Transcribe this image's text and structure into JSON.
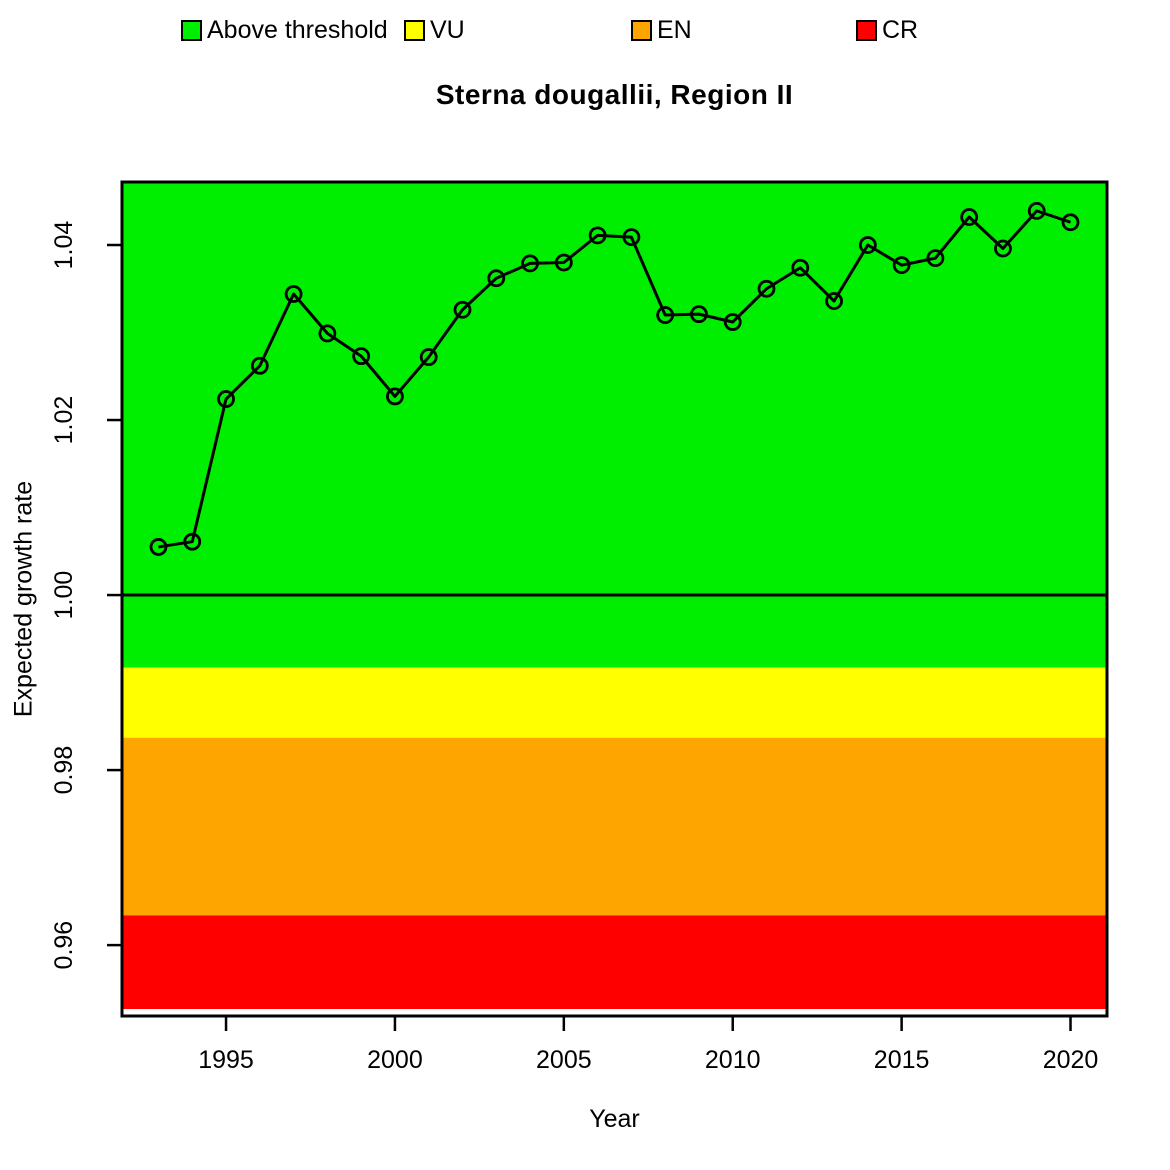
{
  "title": "Sterna dougallii, Region II",
  "legend": {
    "items": [
      {
        "label": "Above threshold",
        "color": "#00EE00"
      },
      {
        "label": "VU",
        "color": "#FFFF00"
      },
      {
        "label": "EN",
        "color": "#FFA500"
      },
      {
        "label": "CR",
        "color": "#FF0000"
      }
    ]
  },
  "chart_data": {
    "type": "line",
    "title": "Sterna dougallii, Region II",
    "xlabel": "Year",
    "ylabel": "Expected growth rate",
    "series": [
      {
        "name": "Expected growth rate",
        "marker": "open-circle",
        "color": "#000000",
        "x": [
          1993,
          1994,
          1995,
          1996,
          1997,
          1998,
          1999,
          2000,
          2001,
          2002,
          2003,
          2004,
          2005,
          2006,
          2007,
          2008,
          2009,
          2010,
          2011,
          2012,
          2013,
          2014,
          2015,
          2016,
          2017,
          2018,
          2019,
          2020
        ],
        "y": [
          1.0055,
          1.0061,
          1.0224,
          1.0262,
          1.0344,
          1.0299,
          1.0273,
          1.0227,
          1.0272,
          1.0326,
          1.0362,
          1.0379,
          1.038,
          1.0411,
          1.0409,
          1.032,
          1.0321,
          1.0312,
          1.035,
          1.0374,
          1.0336,
          1.04,
          1.0377,
          1.0385,
          1.0432,
          1.0396,
          1.0439,
          1.0426
        ]
      }
    ],
    "xticks": [
      1995,
      2000,
      2005,
      2010,
      2015,
      2020
    ],
    "yticks": [
      0.96,
      0.98,
      1.0,
      1.02,
      1.04
    ],
    "xlim": [
      1991.92,
      2021.08
    ],
    "ylim": [
      0.9519,
      1.0472
    ],
    "reference_line": {
      "y": 1.0,
      "color": "#000000"
    },
    "bands": [
      {
        "label": "Above threshold",
        "color": "#00EE00",
        "from": 0.9917,
        "to": 1.0472
      },
      {
        "label": "VU",
        "color": "#FFFF00",
        "from": 0.9837,
        "to": 0.9917
      },
      {
        "label": "EN",
        "color": "#FFA500",
        "from": 0.9634,
        "to": 0.9837
      },
      {
        "label": "CR",
        "color": "#FF0000",
        "from": 0.9527,
        "to": 0.9634
      }
    ],
    "legend_position": "top",
    "grid": false,
    "axis_color": "#000000",
    "tick_label_format": {
      "y_decimals": 2
    }
  }
}
